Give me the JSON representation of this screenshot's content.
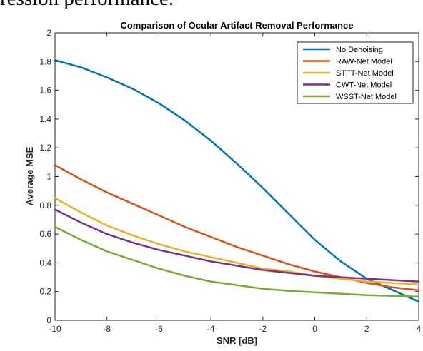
{
  "page": {
    "caption_fragment": "ression performance."
  },
  "chart_data": {
    "type": "line",
    "title": "Comparison of Ocular Artifact Removal Performance",
    "xlabel": "SNR [dB]",
    "ylabel": "Average MSE",
    "xlim": [
      -10,
      4
    ],
    "ylim": [
      0,
      2
    ],
    "xticks": [
      "-10",
      "-8",
      "-6",
      "-4",
      "-2",
      "0",
      "2",
      "4"
    ],
    "yticks": [
      "0",
      "0.2",
      "0.4",
      "0.6",
      "0.8",
      "1",
      "1.2",
      "1.4",
      "1.6",
      "1.8",
      "2"
    ],
    "grid": false,
    "legend_position": "top-right",
    "x": [
      -10,
      -9,
      -8,
      -7,
      -6,
      -5,
      -4,
      -3,
      -2,
      -1,
      0,
      1,
      2,
      3,
      4
    ],
    "series": [
      {
        "name": "No Denoising",
        "color": "#0072BD",
        "values": [
          1.81,
          1.76,
          1.69,
          1.61,
          1.51,
          1.39,
          1.25,
          1.09,
          0.92,
          0.74,
          0.56,
          0.41,
          0.29,
          0.21,
          0.13
        ]
      },
      {
        "name": "RAW-Net Model",
        "color": "#D95319",
        "values": [
          1.08,
          0.98,
          0.89,
          0.81,
          0.73,
          0.65,
          0.58,
          0.51,
          0.45,
          0.39,
          0.34,
          0.3,
          0.26,
          0.23,
          0.21
        ]
      },
      {
        "name": "STFT-Net Model",
        "color": "#EDB120",
        "values": [
          0.85,
          0.75,
          0.66,
          0.59,
          0.53,
          0.48,
          0.44,
          0.4,
          0.36,
          0.34,
          0.31,
          0.29,
          0.27,
          0.26,
          0.25
        ]
      },
      {
        "name": "CWT-Net Model",
        "color": "#7E2F8E",
        "values": [
          0.77,
          0.68,
          0.6,
          0.54,
          0.49,
          0.45,
          0.41,
          0.38,
          0.35,
          0.33,
          0.31,
          0.3,
          0.29,
          0.28,
          0.27
        ]
      },
      {
        "name": "WSST-Net Model",
        "color": "#77AC30",
        "values": [
          0.65,
          0.56,
          0.48,
          0.42,
          0.36,
          0.31,
          0.27,
          0.245,
          0.22,
          0.205,
          0.195,
          0.185,
          0.175,
          0.17,
          0.165
        ]
      }
    ]
  }
}
